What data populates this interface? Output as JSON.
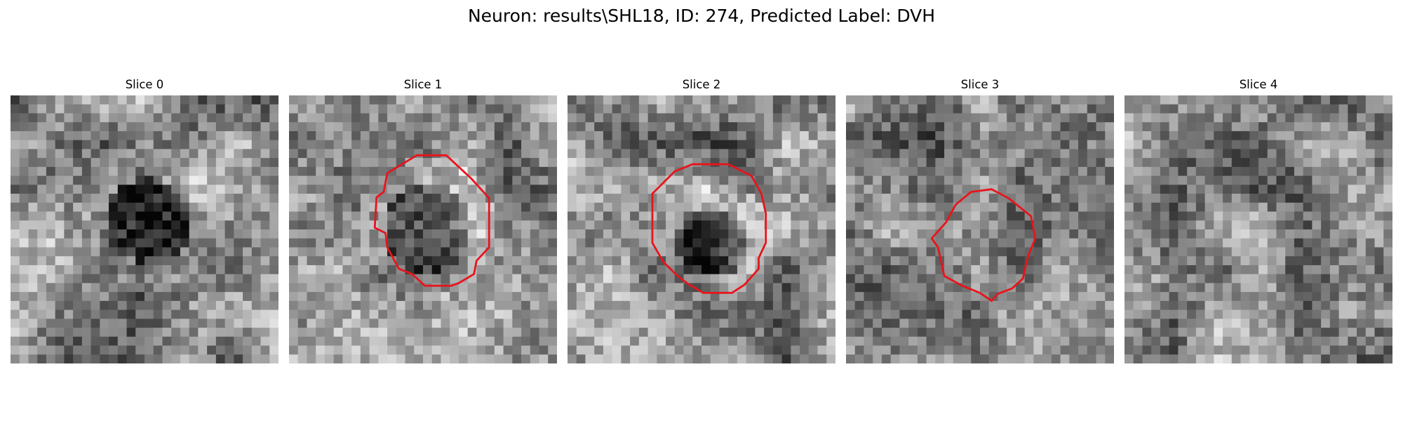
{
  "figure": {
    "title": "Neuron: results\\SHL18, ID: 274, Predicted Label: DVH",
    "contour_color": "#e8141b"
  },
  "slices": [
    {
      "title": "Slice 0",
      "has_contour": false
    },
    {
      "title": "Slice 1",
      "has_contour": true
    },
    {
      "title": "Slice 2",
      "has_contour": true
    },
    {
      "title": "Slice 3",
      "has_contour": true
    },
    {
      "title": "Slice 4",
      "has_contour": false
    }
  ]
}
